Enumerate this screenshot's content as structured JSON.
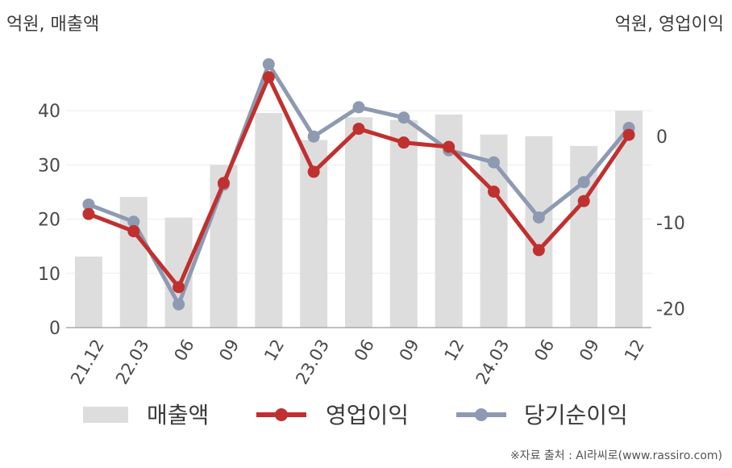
{
  "left_unit": "억원, 매출액",
  "right_unit": "억원, 영업이익",
  "source": "※자료 출처 : AI라씨로(www.rassiro.com)",
  "chart_data": {
    "type": "bar+line",
    "categories": [
      "21.12",
      "22.03",
      "06",
      "09",
      "12",
      "23.03",
      "06",
      "09",
      "12",
      "24.03",
      "06",
      "09",
      "12"
    ],
    "left_axis": {
      "ticks": [
        0,
        10,
        20,
        30,
        40
      ],
      "range": [
        0,
        50
      ]
    },
    "right_axis": {
      "ticks": [
        0,
        -10,
        -20
      ],
      "range": [
        -22.2,
        9.3
      ]
    },
    "series": [
      {
        "name": "매출액",
        "type": "bar",
        "axis": "left",
        "color": "#dddddd",
        "values": [
          13.1,
          24.1,
          20.3,
          30.0,
          39.6,
          34.6,
          38.8,
          38.3,
          39.3,
          35.6,
          35.3,
          33.5,
          40.0
        ]
      },
      {
        "name": "영업이익",
        "type": "line",
        "axis": "right",
        "color": "#c0302f",
        "values": [
          -9.0,
          -11.0,
          -17.5,
          -5.4,
          6.9,
          -4.1,
          0.9,
          -0.7,
          -1.2,
          -6.4,
          -13.2,
          -7.5,
          0.2
        ]
      },
      {
        "name": "당기순이익",
        "type": "line",
        "axis": "right",
        "color": "#8e9ab2",
        "values": [
          -7.9,
          -9.9,
          -19.5,
          -5.6,
          8.4,
          0.0,
          3.4,
          2.2,
          -1.6,
          -3.0,
          -9.4,
          -5.3,
          1.0
        ]
      }
    ]
  }
}
